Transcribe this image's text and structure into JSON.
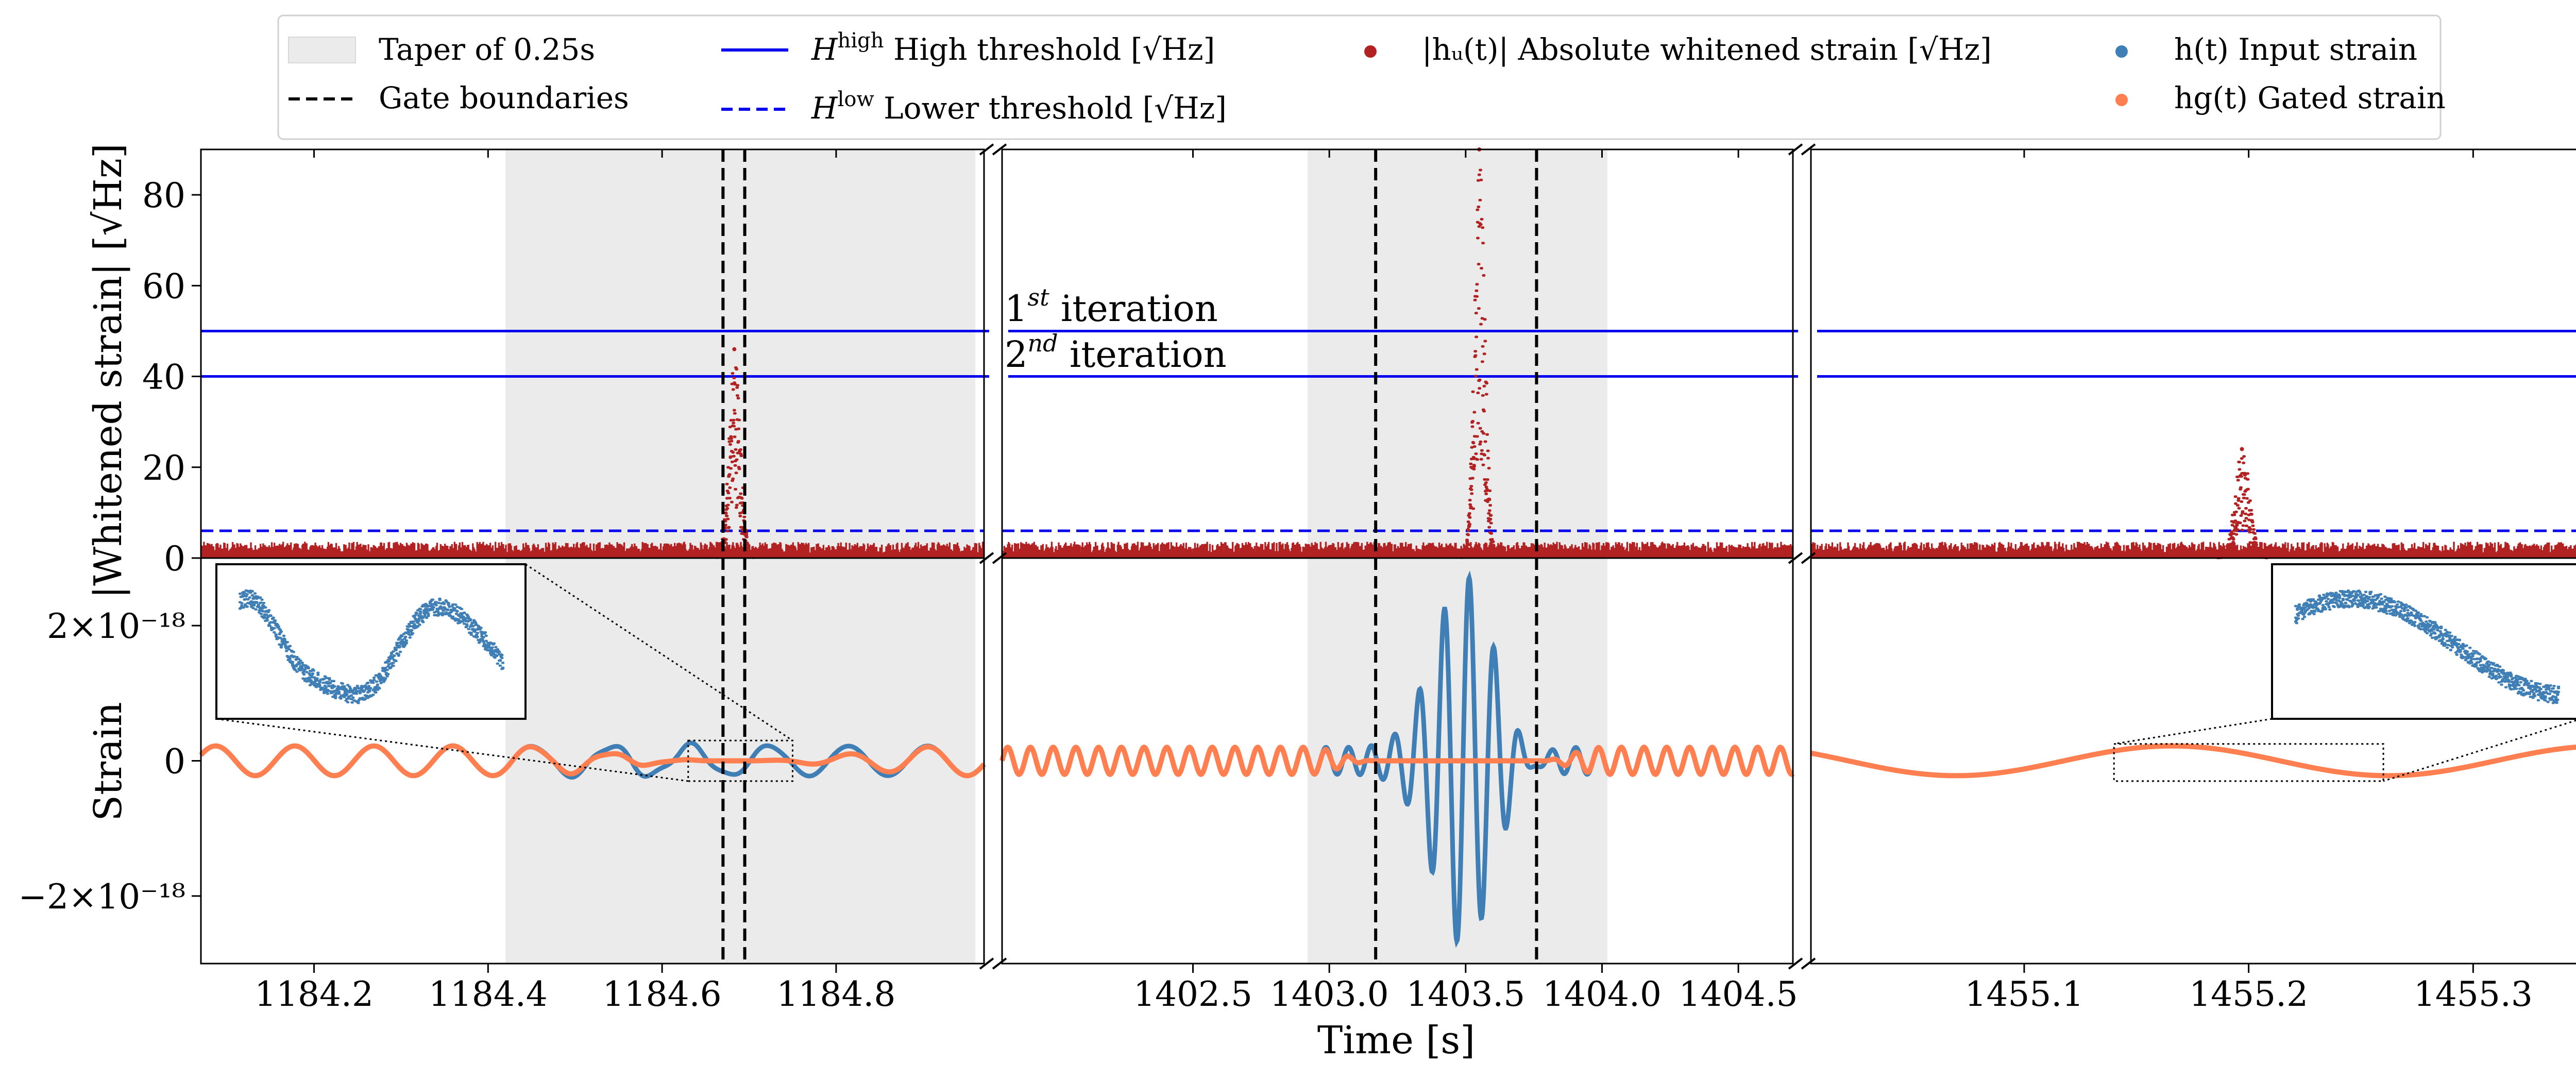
{
  "colors": {
    "taper": "#ebebeb",
    "gate": "#000000",
    "threshold": "#0000ee",
    "whitened": "#b22222",
    "input": "#3f7fb5",
    "gated": "#ff7f50"
  },
  "legend": {
    "taper": "Taper of 0.25s",
    "gate": "Gate boundaries",
    "high_sym": "H",
    "high_sup": "high",
    "high_text": " High threshold [√Hz]",
    "low_sym": "H",
    "low_sup": "low",
    "low_text": " Lower threshold [√Hz]",
    "whitened": "|hᵤ(t)| Absolute whitened strain [√Hz]",
    "input": "h(t) Input strain",
    "gated": "hg(t) Gated strain"
  },
  "chart_data": {
    "type": "scatter",
    "title": "",
    "xlabel": "Time [s]",
    "top_ylabel": "|Whitened strain| [√Hz]",
    "bottom_ylabel": "Strain",
    "top_ylim": [
      0,
      90
    ],
    "top_yticks": [
      {
        "v": 0,
        "label": "0"
      },
      {
        "v": 20,
        "label": "20"
      },
      {
        "v": 40,
        "label": "40"
      },
      {
        "v": 60,
        "label": "60"
      },
      {
        "v": 80,
        "label": "80"
      }
    ],
    "bottom_ylim": [
      -3e-18,
      3e-18
    ],
    "bottom_yticks": [
      {
        "v": 2e-18,
        "label": "2×10⁻¹⁸"
      },
      {
        "v": 0,
        "label": "0"
      },
      {
        "v": -2e-18,
        "label": "−2×10⁻¹⁸"
      }
    ],
    "thresholds": {
      "high_first": 50,
      "high_second": 40,
      "low": 6
    },
    "iteration_labels": [
      "1st iteration",
      "2nd iteration"
    ],
    "segments": [
      {
        "xlim": [
          1184.07,
          1184.97
        ],
        "xticks": [
          {
            "v": 1184.2,
            "label": "1184.2"
          },
          {
            "v": 1184.4,
            "label": "1184.4"
          },
          {
            "v": 1184.6,
            "label": "1184.6"
          },
          {
            "v": 1184.8,
            "label": "1184.8"
          }
        ],
        "taper": [
          1184.42,
          1184.96
        ],
        "gates": [
          1184.67,
          1184.695
        ],
        "glitch": {
          "center": 1184.683,
          "width": 0.01,
          "peak": 46
        },
        "input": {
          "amp": 2.2e-19,
          "freq": 11,
          "phase": 0.4,
          "extra": {
            "center": 1184.6,
            "width": 0.12,
            "amp": 5e-20
          }
        },
        "gated_zero": [
          1184.67,
          1184.695
        ],
        "inset": {
          "window": [
            1184.63,
            1184.75
          ],
          "window_y": [
            -3e-19,
            3e-19
          ],
          "corner": "left"
        }
      },
      {
        "xlim": [
          1401.8,
          1404.7
        ],
        "xticks": [
          {
            "v": 1402.5,
            "label": "1402.5"
          },
          {
            "v": 1403.0,
            "label": "1403.0"
          },
          {
            "v": 1403.5,
            "label": "1403.5"
          },
          {
            "v": 1404.0,
            "label": "1404.0"
          },
          {
            "v": 1404.5,
            "label": "1404.5"
          }
        ],
        "taper": [
          1402.92,
          1404.02
        ],
        "gates": [
          1403.17,
          1403.76
        ],
        "glitch": {
          "center": 1403.55,
          "width": 0.03,
          "peak": 90
        },
        "input": {
          "amp": 2e-19,
          "freq": 12,
          "phase": 0.0,
          "burst": {
            "center": 1403.5,
            "width": 0.16,
            "amp": 2.8e-18,
            "freq": 11
          }
        },
        "gated_zero": [
          1403.17,
          1403.76
        ]
      },
      {
        "xlim": [
          1455.005,
          1455.355
        ],
        "xticks": [
          {
            "v": 1455.1,
            "label": "1455.1"
          },
          {
            "v": 1455.2,
            "label": "1455.2"
          },
          {
            "v": 1455.3,
            "label": "1455.3"
          }
        ],
        "taper": null,
        "gates": null,
        "glitch": {
          "center": 1455.197,
          "width": 0.005,
          "peak": 24
        },
        "input": {
          "amp": 2.2e-19,
          "freq": 5.2,
          "phase": 2.6
        },
        "inset": {
          "window": [
            1455.14,
            1455.26
          ],
          "window_y": [
            -3e-19,
            2.5e-19
          ],
          "corner": "right"
        }
      }
    ]
  }
}
